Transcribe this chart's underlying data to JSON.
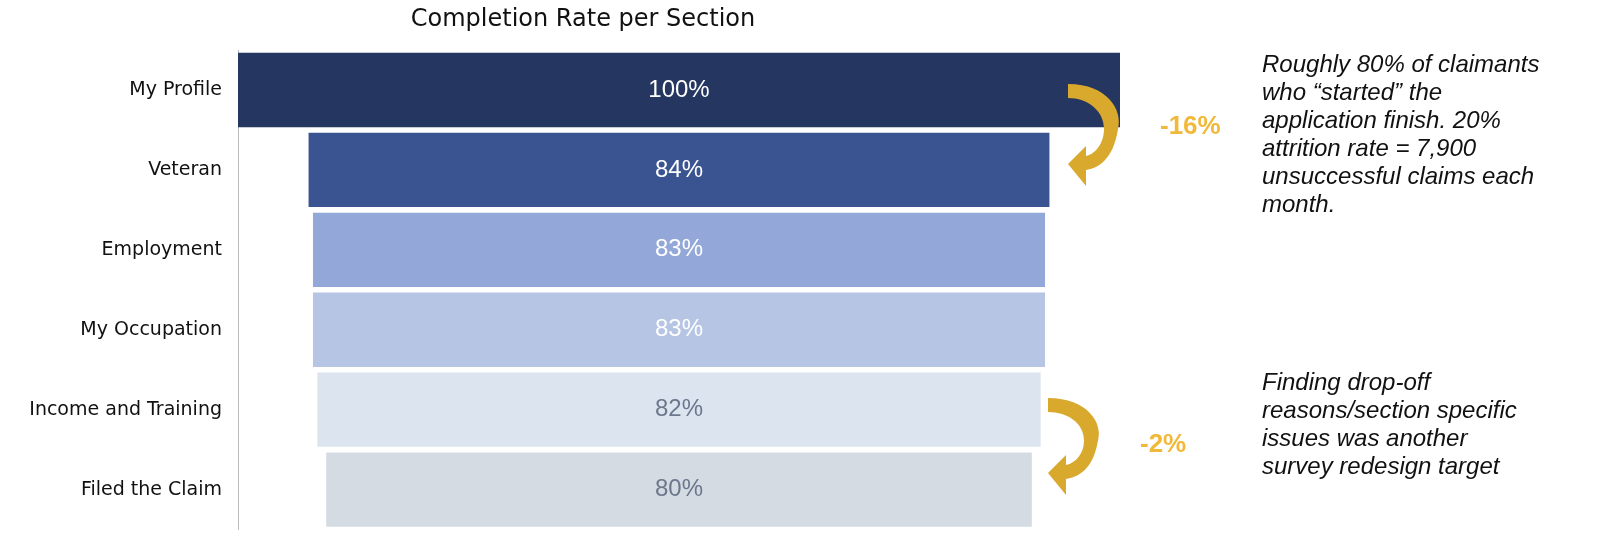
{
  "chart_data": {
    "type": "other",
    "title": "Completion Rate per Section",
    "categories": [
      "My Profile",
      "Veteran",
      "Employment",
      "My Occupation",
      "Income and Training",
      "Filed the Claim"
    ],
    "values": [
      100,
      84,
      83,
      83,
      82,
      80
    ],
    "value_labels": [
      "100%",
      "84%",
      "83%",
      "83%",
      "82%",
      "80%"
    ],
    "colors": [
      "#253660",
      "#3a5491",
      "#93a8d8",
      "#b6c5e4",
      "#dce4f0",
      "#d5dbe3"
    ],
    "annotations": [
      "-16%",
      "-2%",
      "Roughly 80% of claimants who “started” the application finish. 20% attrition rate = 7,900 unsuccessful claims each month.",
      "Finding drop-off reasons/section specific issues was another survey redesign target"
    ]
  }
}
